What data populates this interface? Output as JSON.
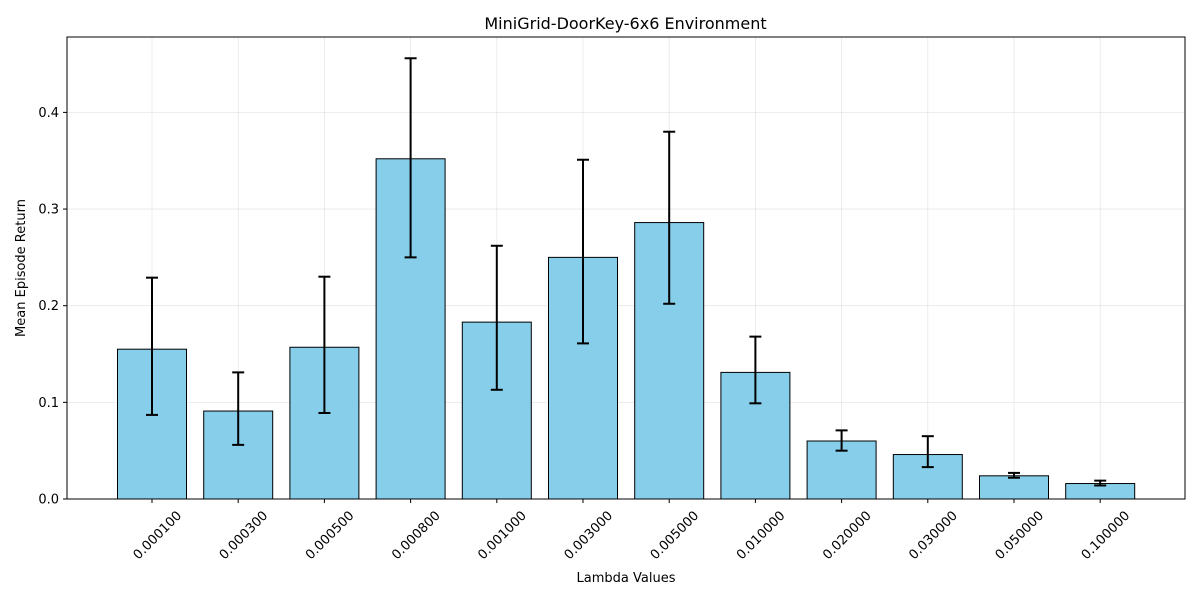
{
  "chart_data": {
    "type": "bar",
    "title": "MiniGrid-DoorKey-6x6 Environment",
    "xlabel": "Lambda Values",
    "ylabel": "Mean Episode Return",
    "categories": [
      "0.000100",
      "0.000300",
      "0.000500",
      "0.000800",
      "0.001000",
      "0.003000",
      "0.005000",
      "0.010000",
      "0.020000",
      "0.030000",
      "0.050000",
      "0.100000"
    ],
    "values": [
      0.155,
      0.091,
      0.157,
      0.352,
      0.183,
      0.25,
      0.286,
      0.131,
      0.06,
      0.046,
      0.024,
      0.016
    ],
    "error_lower": [
      0.087,
      0.056,
      0.089,
      0.25,
      0.113,
      0.161,
      0.202,
      0.099,
      0.05,
      0.033,
      0.022,
      0.014
    ],
    "error_upper": [
      0.229,
      0.131,
      0.23,
      0.456,
      0.262,
      0.351,
      0.38,
      0.168,
      0.071,
      0.065,
      0.027,
      0.019
    ],
    "ylim": [
      0,
      0.478
    ],
    "yticks": [
      0.0,
      0.1,
      0.2,
      0.3,
      0.4
    ],
    "ytick_labels": [
      "0.0",
      "0.1",
      "0.2",
      "0.3",
      "0.4"
    ],
    "grid": true,
    "bar_color": "#87ceeb",
    "edge_color": "#000000",
    "x_tick_rotation": 45
  }
}
